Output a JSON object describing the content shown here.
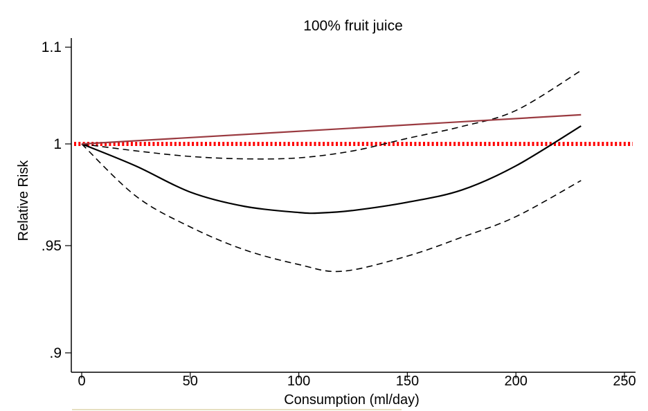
{
  "chart_data": {
    "type": "line",
    "title": "100% fruit juice",
    "xlabel": "Consumption (ml/day)",
    "ylabel": "Relative Risk",
    "xlim": [
      0,
      250
    ],
    "ylim": [
      0.9,
      1.05
    ],
    "y_scale": "log",
    "x_ticks": [
      0,
      50,
      100,
      150,
      200,
      250
    ],
    "x_tick_labels": [
      "0",
      "50",
      "100",
      "150",
      "200",
      "250"
    ],
    "y_ticks": [
      0.9,
      0.95,
      1,
      1.05
    ],
    "y_tick_labels": [
      ".9",
      ".95",
      "1",
      "1.1"
    ],
    "grid": false,
    "reference_line": {
      "y": 1,
      "style": "dotted",
      "color": "#ff0000"
    },
    "series": [
      {
        "style": "solid",
        "color": "#000000",
        "x": [
          0,
          25,
          50,
          75,
          100,
          110,
          125,
          150,
          175,
          200,
          230
        ],
        "y": [
          1.0,
          0.9889,
          0.976,
          0.969,
          0.966,
          0.9658,
          0.967,
          0.971,
          0.977,
          0.989,
          1.0091
        ]
      },
      {
        "style": "dashed",
        "color": "#000000",
        "x": [
          0,
          25,
          50,
          75,
          100,
          125,
          150,
          175,
          200,
          230
        ],
        "y": [
          1.0,
          0.9965,
          0.9937,
          0.9925,
          0.993,
          0.9965,
          1.0028,
          1.0088,
          1.017,
          1.0377
        ]
      },
      {
        "style": "dashed",
        "color": "#000000",
        "x": [
          0,
          25,
          50,
          75,
          100,
          120,
          150,
          175,
          200,
          230
        ],
        "y": [
          1.0,
          0.974,
          0.959,
          0.948,
          0.941,
          0.9378,
          0.945,
          0.954,
          0.964,
          0.9817
        ]
      },
      {
        "style": "solid",
        "color": "#9a3a40",
        "x": [
          0,
          230
        ],
        "y": [
          1.0,
          1.0148
        ]
      }
    ]
  }
}
